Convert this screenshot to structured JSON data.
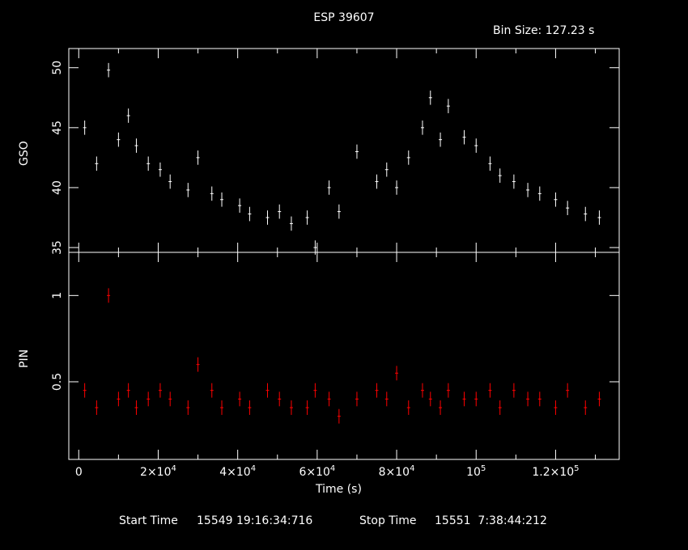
{
  "header": {
    "title": "ESP 39607",
    "bin_size": "Bin Size: 127.23 s"
  },
  "footer": {
    "start_label": "Start Time",
    "start_value": "15549 19:16:34:716",
    "stop_label": "Stop Time",
    "stop_value": "15551  7:38:44:212"
  },
  "colors": {
    "background": "#000000",
    "axes": "#ffffff",
    "gso": "#ffffff",
    "pin": "#ff0000"
  },
  "chart_data": [
    {
      "type": "scatter",
      "name": "GSO",
      "ylabel": "GSO",
      "xlabel": "",
      "xlim": [
        -2500,
        136000
      ],
      "ylim": [
        34.6,
        51.6
      ],
      "yticks": [
        35,
        40,
        45,
        50
      ],
      "ytick_labels": [
        "35",
        "40",
        "45",
        "50"
      ],
      "error_bars": true,
      "x": [
        1500,
        4500,
        7500,
        10000,
        12500,
        14500,
        17500,
        20500,
        23000,
        27500,
        30000,
        33500,
        36000,
        40500,
        43000,
        47500,
        50500,
        53500,
        57500,
        59500,
        63000,
        65500,
        70000,
        75000,
        77500,
        80000,
        83000,
        86500,
        88500,
        91000,
        93000,
        97000,
        100000,
        103500,
        106000,
        109500,
        113000,
        116000,
        120000,
        123000,
        127500,
        131000
      ],
      "y": [
        45,
        42,
        49.8,
        44,
        46,
        43.5,
        42,
        41.5,
        40.5,
        39.8,
        42.5,
        39.5,
        39,
        38.5,
        37.8,
        37.5,
        38,
        37,
        37.5,
        35,
        40,
        38,
        43,
        40.5,
        41.5,
        40,
        42.5,
        45,
        47.5,
        44,
        46.8,
        44.2,
        43.5,
        42,
        41,
        40.5,
        39.8,
        39.5,
        39,
        38.3,
        37.8,
        37.5
      ]
    },
    {
      "type": "scatter",
      "name": "PIN",
      "ylabel": "PIN",
      "xlabel": "Time (s)",
      "xlim": [
        -2500,
        136000
      ],
      "ylim": [
        0.05,
        1.25
      ],
      "yticks": [
        0.5,
        1
      ],
      "ytick_labels": [
        "0.5",
        "1"
      ],
      "xticks": [
        20000,
        40000,
        60000,
        80000,
        100000,
        120000
      ],
      "xtick_labels": [
        [
          "2×10",
          "4"
        ],
        [
          "4×10",
          "4"
        ],
        [
          "6×10",
          "4"
        ],
        [
          "8×10",
          "4"
        ],
        [
          "10",
          "5"
        ],
        [
          "1.2×10",
          "5"
        ]
      ],
      "error_bars": true,
      "x": [
        1500,
        4500,
        7500,
        10000,
        12500,
        14500,
        17500,
        20500,
        23000,
        27500,
        30000,
        33500,
        36000,
        40500,
        43000,
        47500,
        50500,
        53500,
        57500,
        59500,
        63000,
        65500,
        70000,
        75000,
        77500,
        80000,
        83000,
        86500,
        88500,
        91000,
        93000,
        97000,
        100000,
        103500,
        106000,
        109500,
        113000,
        116000,
        120000,
        123000,
        127500,
        131000
      ],
      "y": [
        0.45,
        0.35,
        1.0,
        0.4,
        0.45,
        0.35,
        0.4,
        0.45,
        0.4,
        0.35,
        0.6,
        0.45,
        0.35,
        0.4,
        0.35,
        0.45,
        0.4,
        0.35,
        0.35,
        0.45,
        0.4,
        0.3,
        0.4,
        0.45,
        0.4,
        0.55,
        0.35,
        0.45,
        0.4,
        0.35,
        0.45,
        0.4,
        0.4,
        0.45,
        0.35,
        0.45,
        0.4,
        0.4,
        0.35,
        0.45,
        0.35,
        0.4
      ]
    }
  ]
}
